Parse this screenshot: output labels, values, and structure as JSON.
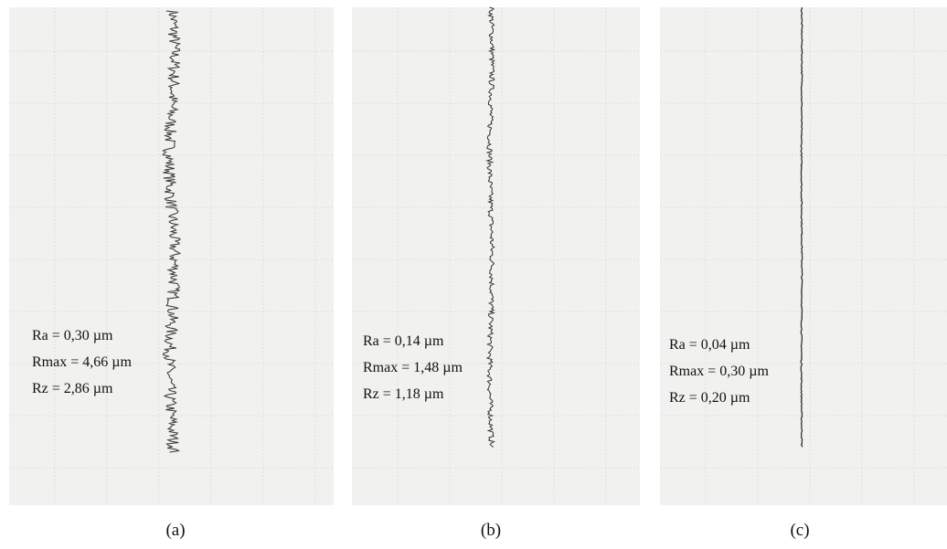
{
  "panels": [
    {
      "label": "(a)",
      "lines": [
        "Ra = 0,30 µm",
        "Rmax = 4,66 µm",
        "Rz = 2,86 µm"
      ]
    },
    {
      "label": "(b)",
      "lines": [
        "Ra = 0,14 µm",
        "Rmax = 1,48 µm",
        "Rz = 1,18 µm"
      ]
    },
    {
      "label": "(c)",
      "lines": [
        "Ra = 0,04 µm",
        "Rmax = 0,30 µm",
        "Rz = 0,20 µm"
      ]
    }
  ]
}
